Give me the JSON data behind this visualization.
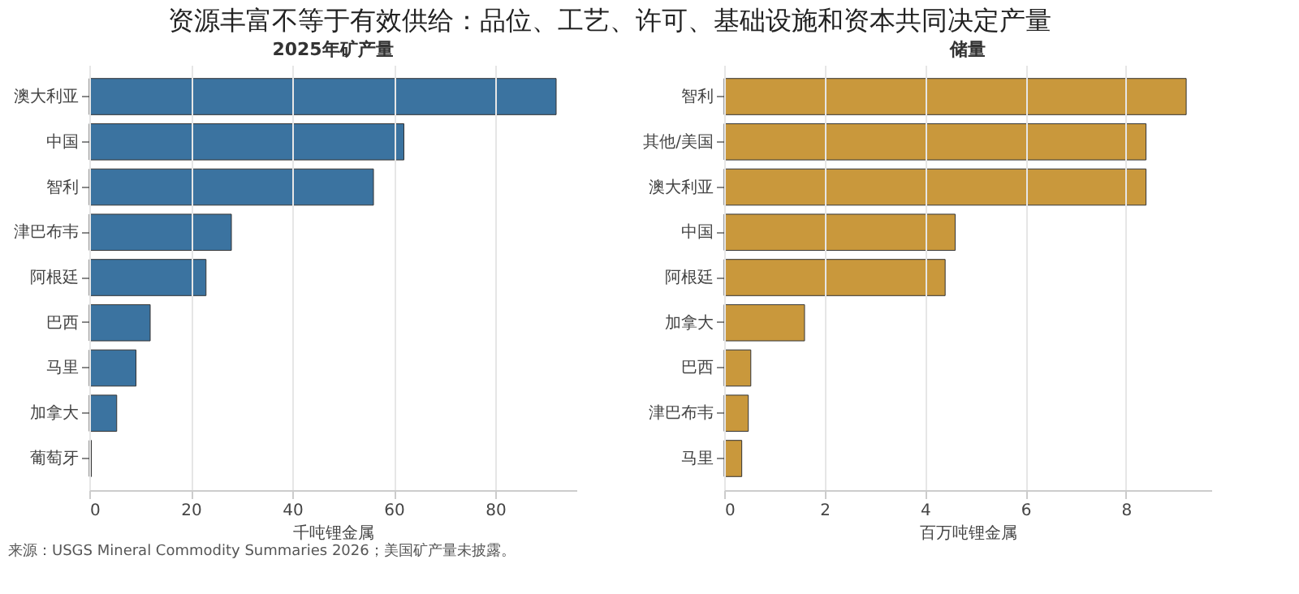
{
  "chart_data": [
    {
      "type": "bar",
      "orientation": "horizontal",
      "title": "2025年矿产量",
      "xlabel": "千吨锂金属",
      "annotations": [
        "资源丰富不等于有效供给：品位、工艺、许可、基础设施和资本共同决定产量",
        "来源：USGS Mineral Commodity Summaries 2026；美国矿产量未披露。"
      ],
      "categories": [
        "澳大利亚",
        "中国",
        "智利",
        "津巴布韦",
        "阿根廷",
        "巴西",
        "马里",
        "加拿大",
        "葡萄牙"
      ],
      "values": [
        92,
        62,
        56,
        28,
        23,
        12,
        9.2,
        5.4,
        0.4
      ],
      "color": "#3b73a0",
      "xlim": [
        0,
        96
      ],
      "xticks": [
        0,
        20,
        40,
        60,
        80
      ],
      "grid": "x"
    },
    {
      "type": "bar",
      "orientation": "horizontal",
      "title": "储量",
      "xlabel": "百万吨锂金属",
      "categories": [
        "智利",
        "其他/美国",
        "澳大利亚",
        "中国",
        "阿根廷",
        "加拿大",
        "巴西",
        "津巴布韦",
        "马里"
      ],
      "values": [
        9.2,
        8.4,
        8.4,
        4.6,
        4.4,
        1.6,
        0.53,
        0.48,
        0.35
      ],
      "color": "#c9983c",
      "xlim": [
        0,
        9.7
      ],
      "xticks": [
        0,
        2,
        4,
        6,
        8
      ],
      "grid": "x"
    }
  ]
}
